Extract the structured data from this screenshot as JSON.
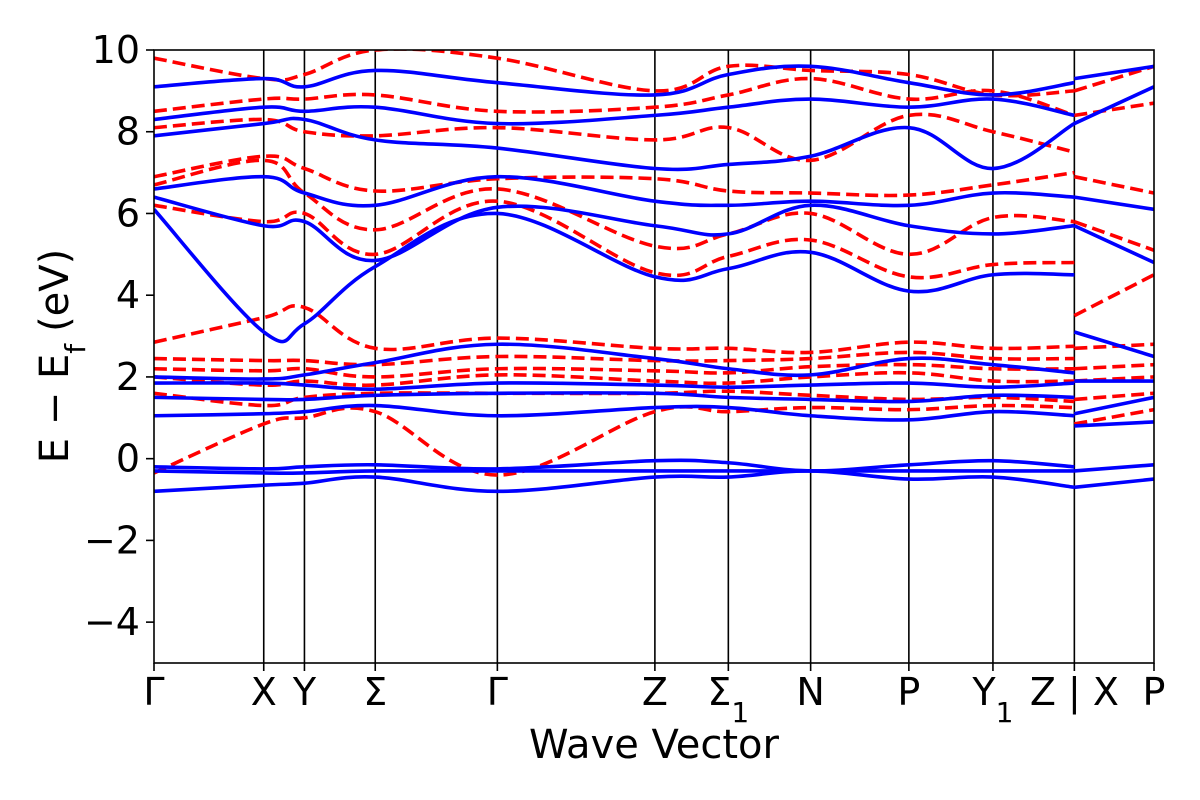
{
  "chart_data": {
    "type": "line",
    "title": "",
    "xlabel": "Wave Vector",
    "ylabel_main": "E − E",
    "ylabel_sub": "f",
    "ylabel_unit": "(eV)",
    "ylim": [
      -5,
      10
    ],
    "xlim": [
      0,
      11.3
    ],
    "y_ticks": [
      {
        "value": -4,
        "label": "−4"
      },
      {
        "value": -2,
        "label": "−2"
      },
      {
        "value": 0,
        "label": "0"
      },
      {
        "value": 2,
        "label": "2"
      },
      {
        "value": 4,
        "label": "4"
      },
      {
        "value": 6,
        "label": "6"
      },
      {
        "value": 8,
        "label": "8"
      },
      {
        "value": 10,
        "label": "10"
      }
    ],
    "k_points": [
      {
        "pos": 0.0,
        "label": "Γ",
        "sub": ""
      },
      {
        "pos": 1.24,
        "label": "X",
        "sub": ""
      },
      {
        "pos": 1.7,
        "label": "Y",
        "sub": ""
      },
      {
        "pos": 2.5,
        "label": "Σ",
        "sub": ""
      },
      {
        "pos": 3.88,
        "label": "Γ",
        "sub": ""
      },
      {
        "pos": 5.66,
        "label": "Z",
        "sub": ""
      },
      {
        "pos": 6.49,
        "label": "Σ",
        "sub": "1"
      },
      {
        "pos": 7.42,
        "label": "N",
        "sub": ""
      },
      {
        "pos": 8.53,
        "label": "P",
        "sub": ""
      },
      {
        "pos": 9.48,
        "label": "Y",
        "sub": "1"
      },
      {
        "pos": 10.4,
        "label": "Z | X",
        "sub": ""
      },
      {
        "pos": 11.3,
        "label": "P",
        "sub": ""
      }
    ],
    "colors": {
      "solid": "#0000ff",
      "dashed": "#ff0000"
    },
    "series": [
      {
        "style": "solid",
        "x": [
          0,
          1.24,
          1.7,
          2.5,
          3.88,
          5.66,
          6.49,
          7.42,
          8.53,
          9.48,
          10.4
        ],
        "y": [
          -0.8,
          -0.65,
          -0.6,
          -0.45,
          -0.8,
          -0.45,
          -0.45,
          -0.3,
          -0.5,
          -0.45,
          -0.7
        ]
      },
      {
        "style": "solid",
        "x": [
          0,
          1.24,
          1.7,
          2.5,
          3.88,
          5.66,
          6.49,
          7.42,
          8.53,
          9.48,
          10.4
        ],
        "y": [
          -0.3,
          -0.35,
          -0.35,
          -0.3,
          -0.3,
          -0.3,
          -0.3,
          -0.3,
          -0.3,
          -0.3,
          -0.3
        ]
      },
      {
        "style": "solid",
        "x": [
          0,
          1.24,
          1.7,
          2.5,
          3.88,
          5.66,
          6.49,
          7.42,
          8.53,
          9.48,
          10.4
        ],
        "y": [
          -0.2,
          -0.25,
          -0.2,
          -0.15,
          -0.25,
          -0.05,
          -0.1,
          -0.3,
          -0.15,
          -0.05,
          -0.2
        ]
      },
      {
        "style": "solid",
        "x": [
          0,
          1.24,
          1.7,
          2.5,
          3.88,
          5.66,
          6.49,
          7.42,
          8.53,
          9.48,
          10.4
        ],
        "y": [
          1.05,
          1.1,
          1.15,
          1.3,
          1.05,
          1.25,
          1.25,
          1.05,
          0.95,
          1.15,
          1.05
        ]
      },
      {
        "style": "solid",
        "x": [
          0,
          1.24,
          1.7,
          2.5,
          3.88,
          5.66,
          6.49,
          7.42,
          8.53,
          9.48,
          10.4
        ],
        "y": [
          1.5,
          1.45,
          1.45,
          1.55,
          1.6,
          1.6,
          1.5,
          1.45,
          1.4,
          1.55,
          1.5
        ]
      },
      {
        "style": "solid",
        "x": [
          0,
          1.24,
          1.7,
          2.5,
          3.88,
          5.66,
          6.49,
          7.42,
          8.53,
          9.48,
          10.4
        ],
        "y": [
          1.85,
          1.85,
          1.8,
          1.7,
          1.85,
          1.8,
          1.75,
          1.8,
          1.85,
          1.75,
          1.85
        ]
      },
      {
        "style": "solid",
        "x": [
          0,
          1.24,
          1.7,
          2.5,
          3.88,
          5.66,
          6.49,
          7.42,
          8.53,
          9.48,
          10.4
        ],
        "y": [
          2.0,
          1.95,
          2.05,
          2.35,
          2.8,
          2.45,
          2.2,
          2.05,
          2.45,
          2.3,
          2.1
        ]
      },
      {
        "style": "solid",
        "x": [
          0,
          1.24,
          1.7,
          2.5,
          3.88,
          5.66,
          6.49,
          7.42,
          8.53,
          9.48,
          10.4
        ],
        "y": [
          6.1,
          3.1,
          3.3,
          4.7,
          6.0,
          4.45,
          4.65,
          5.05,
          4.1,
          4.5,
          4.5
        ]
      },
      {
        "style": "solid",
        "x": [
          0,
          1.24,
          1.7,
          2.5,
          3.88,
          5.66,
          6.49,
          7.42,
          8.53,
          9.48,
          10.4
        ],
        "y": [
          6.4,
          5.7,
          5.8,
          4.85,
          6.15,
          5.7,
          5.5,
          6.2,
          5.7,
          5.5,
          5.7
        ]
      },
      {
        "style": "solid",
        "x": [
          0,
          1.24,
          1.7,
          2.5,
          3.88,
          5.66,
          6.49,
          7.42,
          8.53,
          9.48,
          10.4
        ],
        "y": [
          6.6,
          6.9,
          6.5,
          6.2,
          6.9,
          6.3,
          6.2,
          6.3,
          6.2,
          6.5,
          6.4
        ]
      },
      {
        "style": "solid",
        "x": [
          0,
          1.24,
          1.7,
          2.5,
          3.88,
          5.66,
          6.49,
          7.42,
          8.53,
          9.48,
          10.4
        ],
        "y": [
          7.9,
          8.2,
          8.3,
          7.8,
          7.6,
          7.1,
          7.2,
          7.4,
          8.1,
          7.1,
          8.2
        ]
      },
      {
        "style": "solid",
        "x": [
          0,
          1.24,
          1.7,
          2.5,
          3.88,
          5.66,
          6.49,
          7.42,
          8.53,
          9.48,
          10.4
        ],
        "y": [
          8.3,
          8.6,
          8.5,
          8.6,
          8.2,
          8.4,
          8.6,
          8.8,
          8.6,
          8.8,
          8.4
        ]
      },
      {
        "style": "solid",
        "x": [
          0,
          1.24,
          1.7,
          2.5,
          3.88,
          5.66,
          6.49,
          7.42,
          8.53,
          9.48,
          10.4
        ],
        "y": [
          9.1,
          9.3,
          9.1,
          9.5,
          9.2,
          8.9,
          9.4,
          9.6,
          9.2,
          8.9,
          9.2
        ]
      },
      {
        "style": "solid",
        "x": [
          10.4,
          11.3
        ],
        "y": [
          -0.3,
          -0.15
        ]
      },
      {
        "style": "solid",
        "x": [
          10.4,
          11.3
        ],
        "y": [
          -0.7,
          -0.5
        ]
      },
      {
        "style": "solid",
        "x": [
          10.4,
          11.3
        ],
        "y": [
          0.8,
          0.9
        ]
      },
      {
        "style": "solid",
        "x": [
          10.4,
          11.3
        ],
        "y": [
          1.1,
          1.5
        ]
      },
      {
        "style": "solid",
        "x": [
          10.4,
          11.3
        ],
        "y": [
          1.9,
          1.9
        ]
      },
      {
        "style": "solid",
        "x": [
          10.4,
          11.3
        ],
        "y": [
          3.1,
          2.5
        ]
      },
      {
        "style": "solid",
        "x": [
          10.4,
          11.3
        ],
        "y": [
          5.7,
          4.8
        ]
      },
      {
        "style": "solid",
        "x": [
          10.4,
          11.3
        ],
        "y": [
          6.4,
          6.1
        ]
      },
      {
        "style": "solid",
        "x": [
          10.4,
          11.3
        ],
        "y": [
          8.2,
          9.1
        ]
      },
      {
        "style": "solid",
        "x": [
          10.4,
          11.3
        ],
        "y": [
          9.3,
          9.6
        ]
      },
      {
        "style": "dashed",
        "x": [
          0,
          1.24,
          1.7,
          2.5,
          3.88,
          5.66,
          6.49,
          7.42,
          8.53,
          9.48,
          10.4
        ],
        "y": [
          -0.35,
          0.85,
          1.0,
          1.15,
          -0.4,
          1.15,
          1.15,
          1.25,
          1.2,
          1.3,
          1.25
        ]
      },
      {
        "style": "dashed",
        "x": [
          0,
          1.24,
          1.7,
          2.5,
          3.88,
          5.66,
          6.49,
          7.42,
          8.53,
          9.48,
          10.4
        ],
        "y": [
          1.6,
          1.3,
          1.5,
          1.6,
          1.6,
          1.6,
          1.65,
          1.55,
          1.45,
          1.5,
          1.4
        ]
      },
      {
        "style": "dashed",
        "x": [
          0,
          1.24,
          1.7,
          2.5,
          3.88,
          5.66,
          6.49,
          7.42,
          8.53,
          9.48,
          10.4
        ],
        "y": [
          2.0,
          1.8,
          1.9,
          1.8,
          2.05,
          1.9,
          1.85,
          2.0,
          2.1,
          1.9,
          1.9
        ]
      },
      {
        "style": "dashed",
        "x": [
          0,
          1.24,
          1.7,
          2.5,
          3.88,
          5.66,
          6.49,
          7.42,
          8.53,
          9.48,
          10.4
        ],
        "y": [
          2.2,
          2.15,
          2.2,
          2.0,
          2.2,
          2.15,
          2.1,
          2.25,
          2.3,
          2.2,
          2.2
        ]
      },
      {
        "style": "dashed",
        "x": [
          0,
          1.24,
          1.7,
          2.5,
          3.88,
          5.66,
          6.49,
          7.42,
          8.53,
          9.48,
          10.4
        ],
        "y": [
          2.45,
          2.4,
          2.4,
          2.3,
          2.5,
          2.4,
          2.4,
          2.45,
          2.6,
          2.45,
          2.45
        ]
      },
      {
        "style": "dashed",
        "x": [
          0,
          1.24,
          1.7,
          2.5,
          3.88,
          5.66,
          6.49,
          7.42,
          8.53,
          9.48,
          10.4
        ],
        "y": [
          2.85,
          3.45,
          3.7,
          2.7,
          2.95,
          2.7,
          2.7,
          2.6,
          2.85,
          2.7,
          2.75
        ]
      },
      {
        "style": "dashed",
        "x": [
          0,
          1.24,
          1.7,
          2.5,
          3.88,
          5.66,
          6.49,
          7.42,
          8.53,
          9.48,
          10.4
        ],
        "y": [
          6.2,
          5.8,
          6.0,
          5.0,
          6.3,
          4.55,
          4.95,
          5.35,
          4.45,
          4.75,
          4.8
        ]
      },
      {
        "style": "dashed",
        "x": [
          0,
          1.24,
          1.7,
          2.5,
          3.88,
          5.66,
          6.49,
          7.42,
          8.53,
          9.48,
          10.4
        ],
        "y": [
          6.7,
          7.3,
          6.5,
          5.6,
          6.6,
          5.2,
          5.5,
          6.0,
          5.0,
          5.9,
          5.8
        ]
      },
      {
        "style": "dashed",
        "x": [
          0,
          1.24,
          1.7,
          2.5,
          3.88,
          5.66,
          6.49,
          7.42,
          8.53,
          9.48,
          10.4
        ],
        "y": [
          6.9,
          7.4,
          7.1,
          6.55,
          6.85,
          6.85,
          6.55,
          6.5,
          6.45,
          6.7,
          7.0
        ]
      },
      {
        "style": "dashed",
        "x": [
          0,
          1.24,
          1.7,
          2.5,
          3.88,
          5.66,
          6.49,
          7.42,
          8.53,
          9.48,
          10.4
        ],
        "y": [
          8.1,
          8.3,
          8.0,
          7.9,
          8.1,
          7.8,
          8.1,
          7.3,
          8.4,
          8.0,
          7.5
        ]
      },
      {
        "style": "dashed",
        "x": [
          0,
          1.24,
          1.7,
          2.5,
          3.88,
          5.66,
          6.49,
          7.42,
          8.53,
          9.48,
          10.4
        ],
        "y": [
          8.5,
          8.8,
          8.8,
          8.9,
          8.5,
          8.6,
          8.9,
          9.3,
          8.8,
          9.0,
          8.4
        ]
      },
      {
        "style": "dashed",
        "x": [
          0,
          1.24,
          1.7,
          2.5,
          3.88,
          5.66,
          6.49,
          7.42,
          8.53,
          9.48,
          10.4
        ],
        "y": [
          9.8,
          9.3,
          9.4,
          10.0,
          9.8,
          9.0,
          9.6,
          9.5,
          9.4,
          8.9,
          9.0
        ]
      },
      {
        "style": "dashed",
        "x": [
          10.4,
          11.3
        ],
        "y": [
          0.85,
          1.2
        ]
      },
      {
        "style": "dashed",
        "x": [
          10.4,
          11.3
        ],
        "y": [
          1.45,
          1.6
        ]
      },
      {
        "style": "dashed",
        "x": [
          10.4,
          11.3
        ],
        "y": [
          1.9,
          2.0
        ]
      },
      {
        "style": "dashed",
        "x": [
          10.4,
          11.3
        ],
        "y": [
          2.2,
          2.3
        ]
      },
      {
        "style": "dashed",
        "x": [
          10.4,
          11.3
        ],
        "y": [
          2.7,
          2.8
        ]
      },
      {
        "style": "dashed",
        "x": [
          10.4,
          11.3
        ],
        "y": [
          3.5,
          4.5
        ]
      },
      {
        "style": "dashed",
        "x": [
          10.4,
          11.3
        ],
        "y": [
          5.8,
          5.1
        ]
      },
      {
        "style": "dashed",
        "x": [
          10.4,
          11.3
        ],
        "y": [
          6.9,
          6.5
        ]
      },
      {
        "style": "dashed",
        "x": [
          10.4,
          11.3
        ],
        "y": [
          8.4,
          8.7
        ]
      },
      {
        "style": "dashed",
        "x": [
          10.4,
          11.3
        ],
        "y": [
          9.0,
          9.6
        ]
      }
    ]
  }
}
